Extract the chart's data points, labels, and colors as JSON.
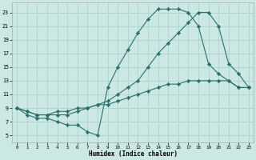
{
  "xlabel": "Humidex (Indice chaleur)",
  "bg_color": "#cce8e4",
  "line_color": "#2a7068",
  "grid_color": "#a8d0cc",
  "c1_x": [
    0,
    1,
    2,
    3,
    4,
    5,
    6,
    7,
    8,
    9,
    10,
    11,
    12,
    13,
    14,
    15,
    16,
    17,
    18,
    19,
    20,
    21,
    22,
    23
  ],
  "c1_y": [
    9,
    8,
    7.5,
    7.5,
    7,
    6.5,
    6.5,
    5.5,
    5.0,
    12,
    15,
    17.5,
    20,
    22,
    23.5,
    23.5,
    23.5,
    23,
    21,
    15.5,
    14,
    13,
    12,
    12
  ],
  "c2_x": [
    0,
    1,
    2,
    3,
    4,
    5,
    6,
    7,
    8,
    9,
    10,
    11,
    12,
    13,
    14,
    15,
    16,
    17,
    18,
    19,
    20,
    21,
    22,
    23
  ],
  "c2_y": [
    9,
    8.5,
    8,
    8,
    8,
    8,
    8.5,
    9,
    9.5,
    10,
    11,
    12,
    13,
    15,
    17,
    18.5,
    20,
    21.5,
    23,
    23,
    21,
    15.5,
    14,
    12
  ],
  "c3_x": [
    0,
    1,
    2,
    3,
    4,
    5,
    6,
    7,
    8,
    9,
    10,
    11,
    12,
    13,
    14,
    15,
    16,
    17,
    18,
    19,
    20,
    21,
    22,
    23
  ],
  "c3_y": [
    9,
    8.5,
    8,
    8,
    8.5,
    8.5,
    9,
    9,
    9.5,
    9.5,
    10,
    10.5,
    11,
    11.5,
    12,
    12.5,
    12.5,
    13,
    13,
    13,
    13,
    13,
    12,
    12
  ],
  "xlim": [
    -0.5,
    23.5
  ],
  "ylim": [
    4.0,
    24.5
  ],
  "xticks": [
    0,
    1,
    2,
    3,
    4,
    5,
    6,
    7,
    8,
    9,
    10,
    11,
    12,
    13,
    14,
    15,
    16,
    17,
    18,
    19,
    20,
    21,
    22,
    23
  ],
  "yticks": [
    5,
    7,
    9,
    11,
    13,
    15,
    17,
    19,
    21,
    23
  ]
}
